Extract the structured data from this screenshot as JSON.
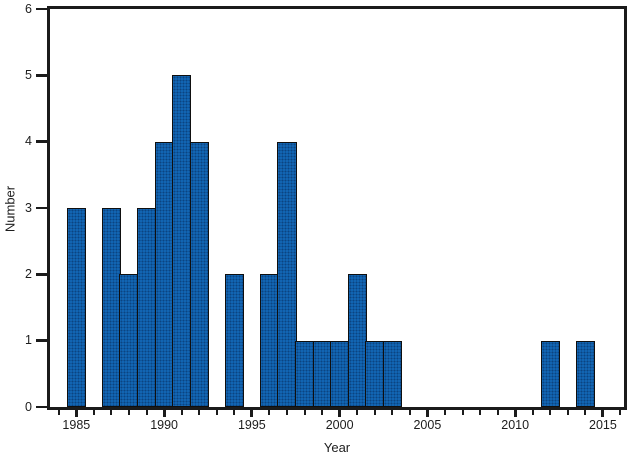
{
  "chart_data": {
    "type": "bar",
    "title": "",
    "xlabel": "Year",
    "ylabel": "Number",
    "x": [
      1985,
      1986,
      1987,
      1988,
      1989,
      1990,
      1991,
      1992,
      1993,
      1994,
      1995,
      1996,
      1997,
      1998,
      1999,
      2000,
      2001,
      2002,
      2003,
      2004,
      2005,
      2006,
      2007,
      2008,
      2009,
      2010,
      2011,
      2012,
      2013,
      2014
    ],
    "values": [
      3,
      0,
      3,
      2,
      3,
      4,
      5,
      4,
      0,
      2,
      0,
      2,
      4,
      1,
      1,
      1,
      2,
      1,
      1,
      0,
      0,
      0,
      0,
      0,
      0,
      0,
      0,
      1,
      0,
      1
    ],
    "bar_width": 1,
    "xlim": [
      1983.5,
      2016.2
    ],
    "ylim": [
      0,
      6
    ],
    "y_ticks": [
      0,
      1,
      2,
      3,
      4,
      5,
      6
    ],
    "x_major_ticks": [
      1985,
      1990,
      1995,
      2000,
      2005,
      2010,
      2015
    ],
    "x_minor_tick_range": [
      1984,
      2016
    ],
    "x_minor_tick_step": 1,
    "grid": false,
    "legend_position": "none",
    "bar_fill_color": "#1368b7",
    "bar_edge_color": "#0f0f0f",
    "axis_color": "#1b1b1b",
    "text_color": "#1d1d1d",
    "background_color": "#ffffff"
  }
}
